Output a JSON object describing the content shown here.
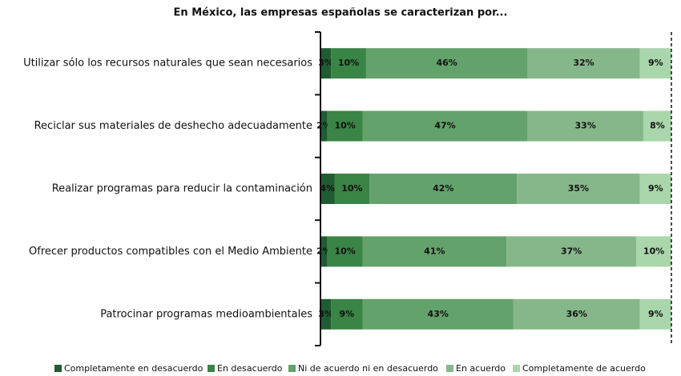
{
  "chart_data": {
    "type": "stacked-barh",
    "title": "En México, las empresas españolas se caracterizan por...",
    "categories": [
      "Utilizar sólo los recursos naturales que sean necesarios",
      "Reciclar sus materiales de deshecho adecuadamente",
      "Realizar programas para reducir la contaminación",
      "Ofrecer productos compatibles con el Medio Ambiente",
      "Patrocinar programas medioambientales"
    ],
    "series": [
      {
        "name": "Completamente en desacuerdo",
        "color": "#1f5c32",
        "values": [
          3,
          2,
          4,
          2,
          3
        ],
        "value_labels": [
          "3%",
          "2%",
          "4%",
          "2%",
          "3%"
        ]
      },
      {
        "name": "En desacuerdo",
        "color": "#3a8446",
        "values": [
          10,
          10,
          10,
          10,
          9
        ],
        "value_labels": [
          "10%",
          "10%",
          "10%",
          "10%",
          "9%"
        ]
      },
      {
        "name": "Ni de acuerdo ni en desacuerdo",
        "color": "#64a26b",
        "values": [
          46,
          47,
          42,
          41,
          43
        ],
        "value_labels": [
          "46%",
          "47%",
          "42%",
          "41%",
          "43%"
        ]
      },
      {
        "name": "En acuerdo",
        "color": "#86b78a",
        "values": [
          32,
          33,
          35,
          37,
          36
        ],
        "value_labels": [
          "32%",
          "33%",
          "35%",
          "37%",
          "36%"
        ]
      },
      {
        "name": "Completamente de acuerdo",
        "color": "#a9d6ab",
        "values": [
          9,
          8,
          9,
          10,
          9
        ],
        "value_labels": [
          "9%",
          "8%",
          "9%",
          "10%",
          "9%"
        ]
      }
    ]
  }
}
